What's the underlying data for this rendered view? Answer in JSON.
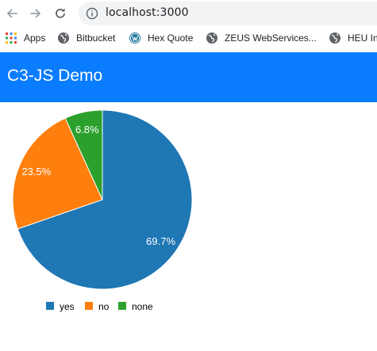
{
  "browser": {
    "url": "localhost:3000",
    "bookmarks": [
      {
        "label": "Apps",
        "icon": "apps-grid-icon"
      },
      {
        "label": "Bitbucket",
        "icon": "globe-icon"
      },
      {
        "label": "Hex Quote",
        "icon": "wordpress-icon"
      },
      {
        "label": "ZEUS WebServices...",
        "icon": "globe-icon"
      },
      {
        "label": "HEU Int",
        "icon": "globe-icon"
      }
    ]
  },
  "app": {
    "title": "C3-JS Demo",
    "header_color": "#0a7cff"
  },
  "chart_data": {
    "type": "pie",
    "title": "",
    "slices": [
      {
        "name": "yes",
        "value": 69.7,
        "label": "69.7%",
        "color": "#1f77b4"
      },
      {
        "name": "no",
        "value": 23.5,
        "label": "23.5%",
        "color": "#ff7f0e"
      },
      {
        "name": "none",
        "value": 6.8,
        "label": "6.8%",
        "color": "#2ca02c"
      }
    ],
    "legend": {
      "position": "bottom",
      "entries": [
        "yes",
        "no",
        "none"
      ]
    }
  }
}
